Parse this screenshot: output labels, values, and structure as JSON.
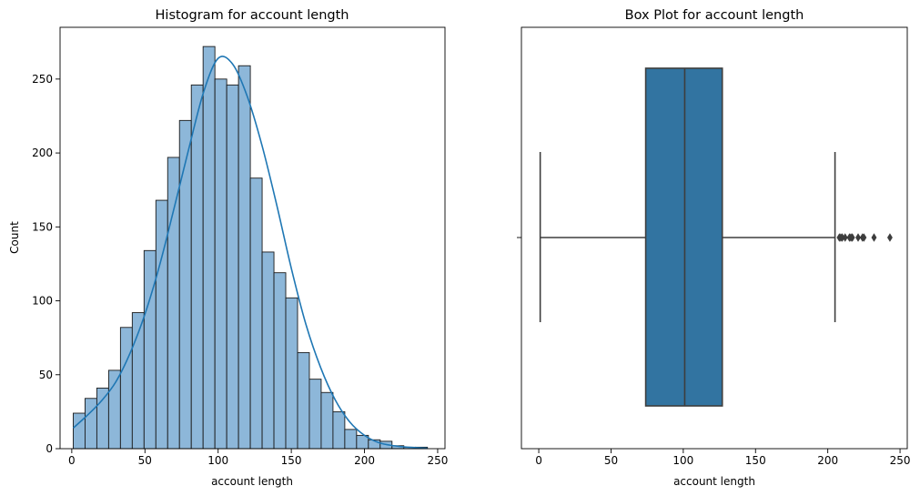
{
  "chart_data": [
    {
      "type": "bar",
      "subtype": "histogram",
      "title": "Histogram for account length",
      "xlabel": "account length",
      "ylabel": "Count",
      "xlim": [
        -8,
        255
      ],
      "ylim": [
        0,
        285
      ],
      "xticks": [
        0,
        50,
        100,
        150,
        200,
        250
      ],
      "yticks": [
        0,
        50,
        100,
        150,
        200,
        250
      ],
      "bin_width": 8.07,
      "bins_start": [
        1,
        9.07,
        17.13,
        25.2,
        33.27,
        41.33,
        49.4,
        57.47,
        65.53,
        73.6,
        81.67,
        89.73,
        97.8,
        105.87,
        113.93,
        122,
        130.07,
        138.13,
        146.2,
        154.27,
        162.33,
        170.4,
        178.47,
        186.53,
        194.6,
        202.67,
        210.73,
        218.8,
        226.87,
        234.93
      ],
      "values": [
        24,
        34,
        41,
        53,
        82,
        92,
        134,
        168,
        197,
        222,
        246,
        272,
        250,
        246,
        259,
        183,
        133,
        119,
        102,
        65,
        47,
        38,
        25,
        13,
        9,
        6,
        5,
        2,
        1,
        1
      ],
      "kde": {
        "x": [
          1,
          10,
          20,
          30,
          40,
          50,
          60,
          70,
          80,
          90,
          100,
          110,
          120,
          130,
          140,
          150,
          160,
          170,
          180,
          190,
          200,
          210,
          220,
          230,
          243
        ],
        "y": [
          14,
          22,
          32,
          45,
          65,
          91,
          124,
          163,
          203,
          241,
          264,
          260,
          238,
          205,
          165,
          122,
          84,
          55,
          33,
          18,
          9,
          4,
          2,
          1,
          0.3
        ]
      },
      "colors": {
        "bar_fill": "#8db7d9",
        "bar_edge": "#1a1a1a",
        "kde_line": "#1f77b4"
      }
    },
    {
      "type": "box",
      "title": "Box Plot for account length",
      "xlabel": "account length",
      "xlim": [
        -12,
        255
      ],
      "xticks": [
        0,
        50,
        100,
        150,
        200,
        250
      ],
      "stats": {
        "whisker_low": 1,
        "q1": 74,
        "median": 101,
        "q3": 127,
        "whisker_high": 205
      },
      "outliers": [
        208,
        209,
        210,
        212,
        215,
        216,
        217,
        221,
        224,
        225,
        232,
        243
      ],
      "colors": {
        "box_fill": "#3274a1",
        "line": "#3d3d3d"
      }
    }
  ]
}
